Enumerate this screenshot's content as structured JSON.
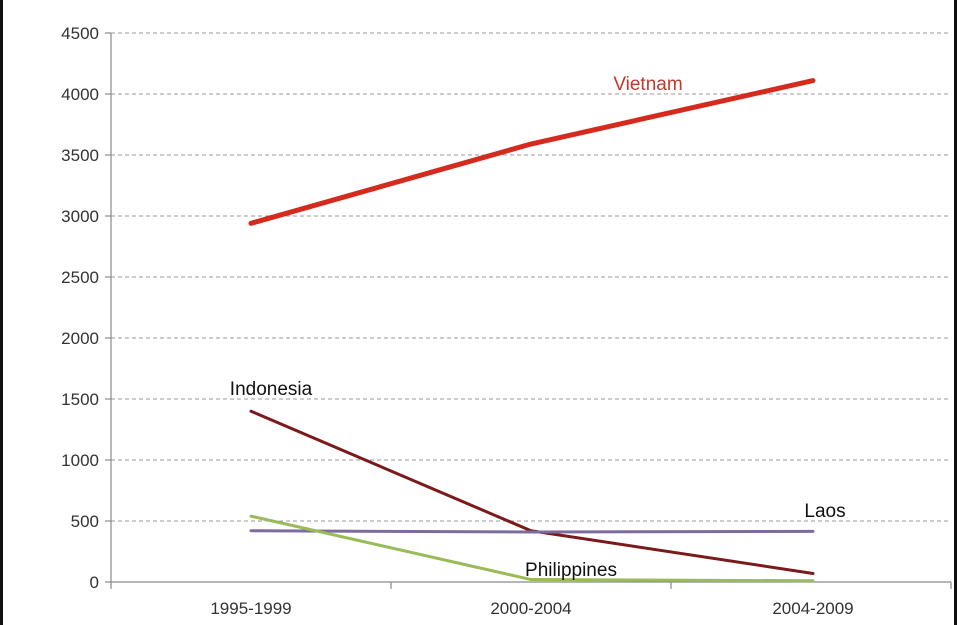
{
  "chart_data": {
    "type": "line",
    "categories": [
      "1995-1999",
      "2000-2004",
      "2004-2009"
    ],
    "ylim": [
      0,
      4500
    ],
    "yticks": [
      0,
      500,
      1000,
      1500,
      2000,
      2500,
      3000,
      3500,
      4000,
      4500
    ],
    "grid": true,
    "legend": "inline labels",
    "series": [
      {
        "name": "Vietnam",
        "values": [
          2940,
          3590,
          4110
        ],
        "color": "#d52b1e",
        "label_color": "#c0392b",
        "width": 5
      },
      {
        "name": "Indonesia",
        "values": [
          1400,
          420,
          70
        ],
        "color": "#7b1a1a",
        "label_color": "#111111",
        "width": 3
      },
      {
        "name": "Laos",
        "values": [
          420,
          410,
          415
        ],
        "color": "#7d6b9e",
        "label_color": "#111111",
        "width": 3
      },
      {
        "name": "Philippines",
        "values": [
          540,
          20,
          10
        ],
        "color": "#9bbb59",
        "label_color": "#111111",
        "width": 3
      }
    ]
  }
}
